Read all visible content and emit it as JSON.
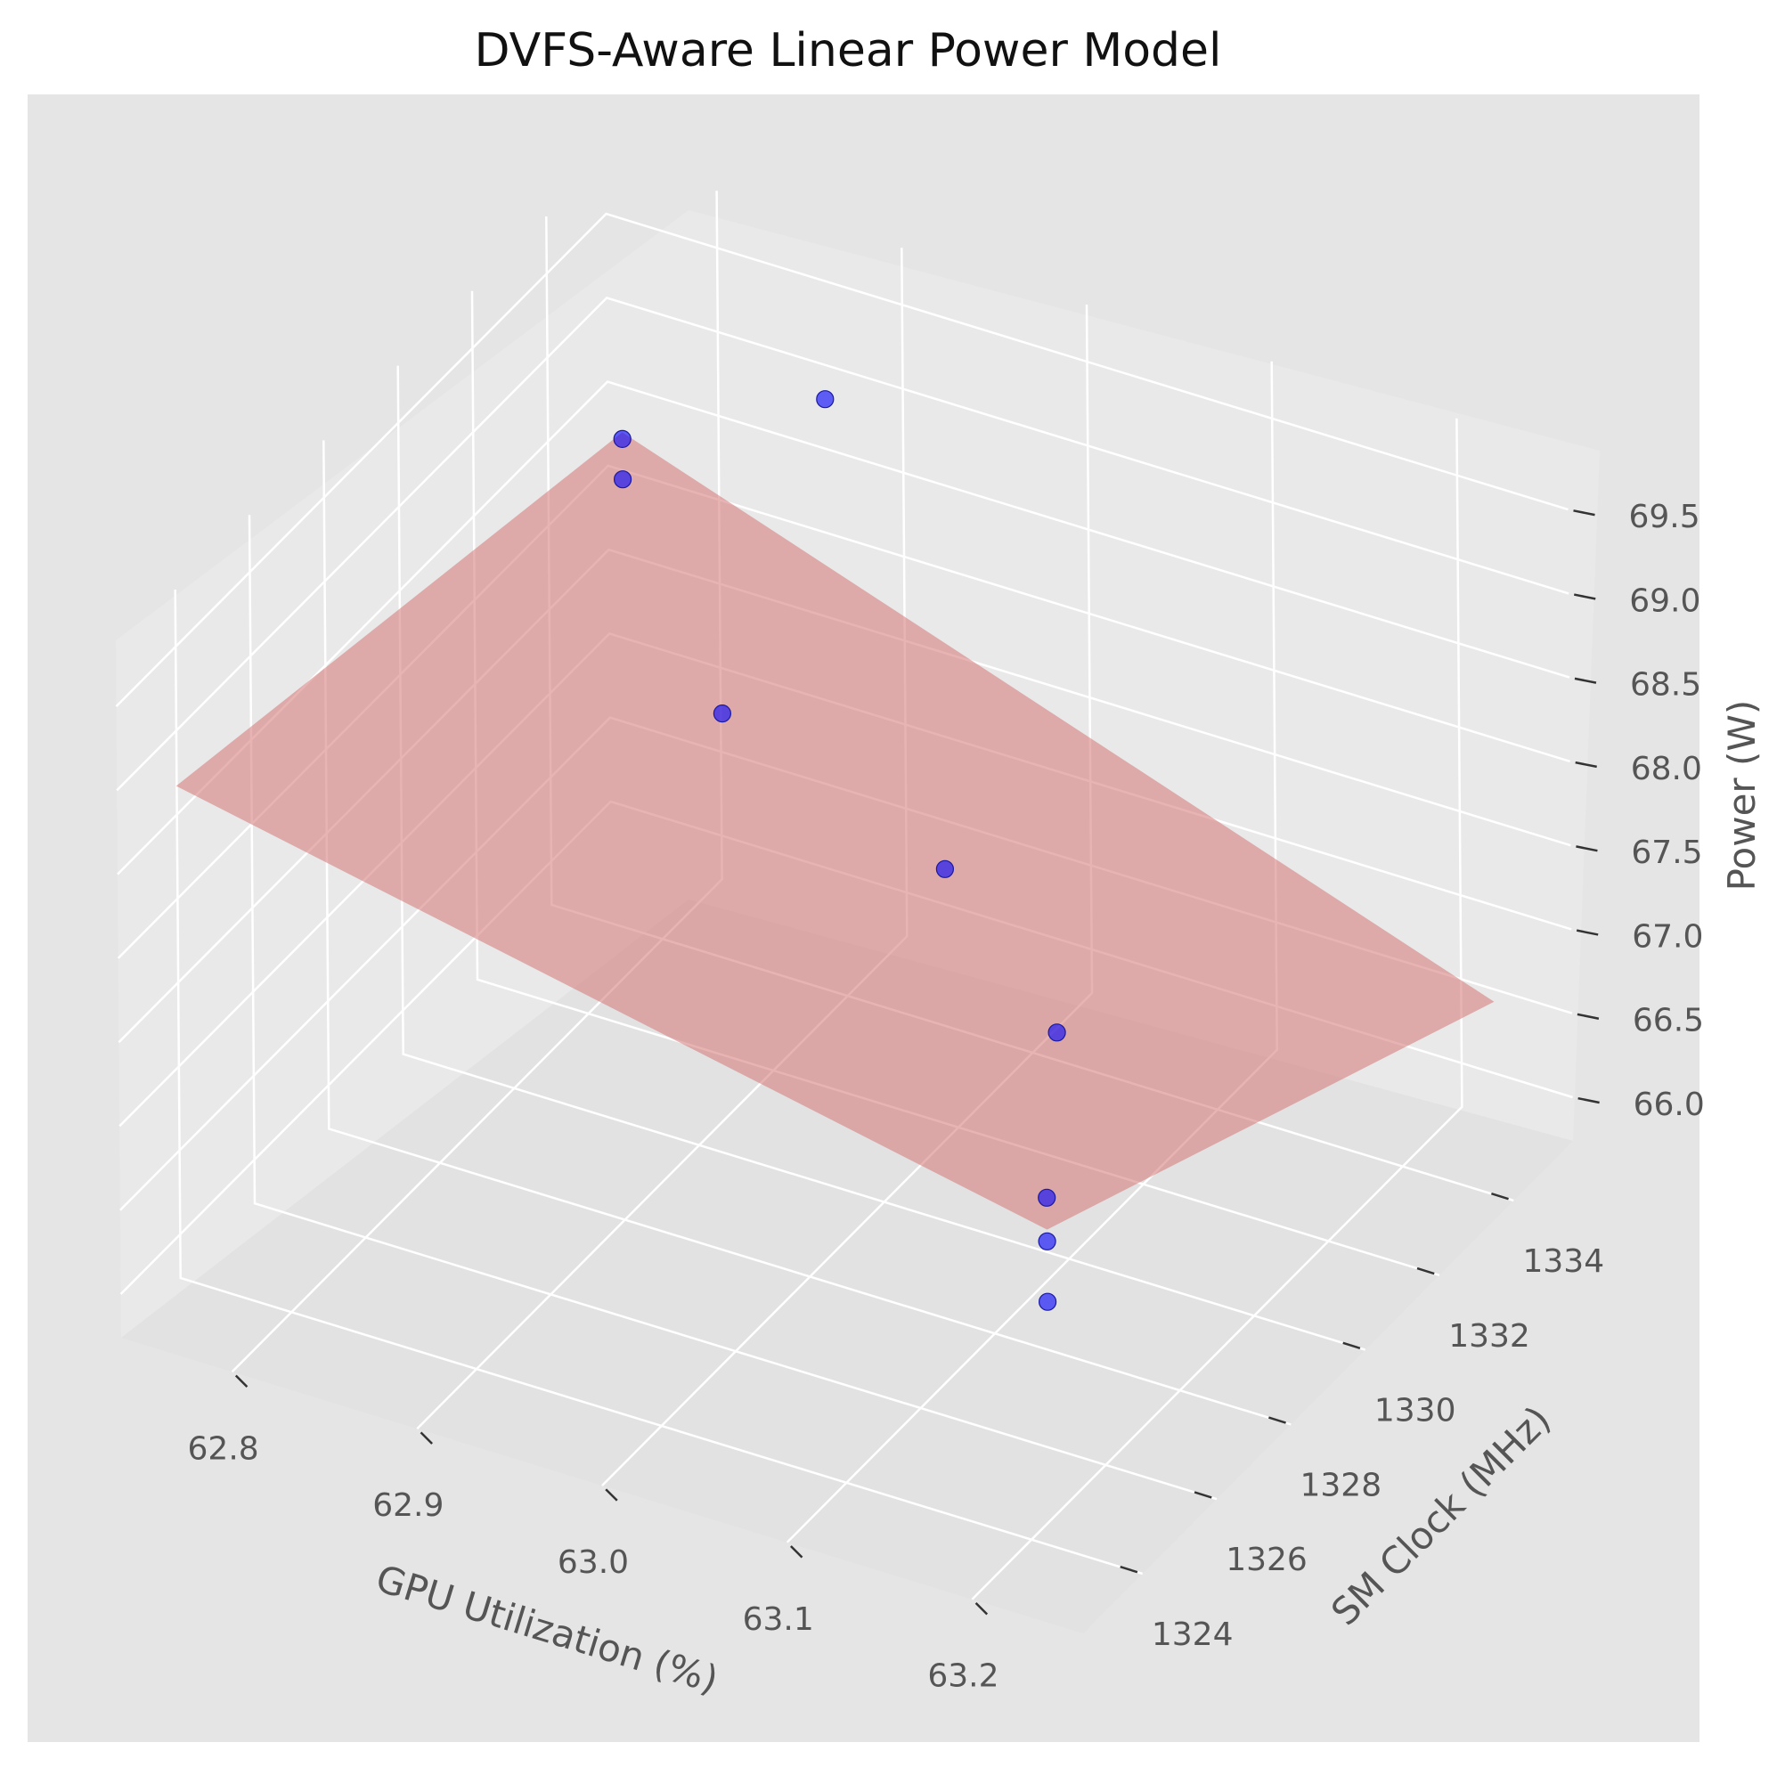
{
  "chart_data": {
    "type": "scatter",
    "title": "DVFS-Aware Linear Power Model",
    "xlabel": "GPU Utilization (%)",
    "ylabel": "SM Clock (MHz)",
    "zlabel": "Power (W)",
    "x_ticks": [
      "62.8",
      "62.9",
      "63.0",
      "63.1",
      "63.2"
    ],
    "y_ticks": [
      "1324",
      "1326",
      "1328",
      "1330",
      "1332",
      "1334"
    ],
    "z_ticks": [
      "66.0",
      "66.5",
      "67.0",
      "67.5",
      "68.0",
      "68.5",
      "69.0",
      "69.5"
    ],
    "xlim": [
      62.74,
      63.26
    ],
    "ylim": [
      1322.4,
      1335.6
    ],
    "zlim": [
      65.74,
      69.84
    ],
    "grid": true,
    "series": [
      {
        "kind": "scatter",
        "color": "#0000ff",
        "points": [
          {
            "x": 62.76,
            "y": 1335.0,
            "z": 68.36
          },
          {
            "x": 62.76,
            "y": 1335.0,
            "z": 68.12
          },
          {
            "x": 62.87,
            "y": 1335.0,
            "z": 68.97
          },
          {
            "x": 62.89,
            "y": 1331.2,
            "z": 68.01
          },
          {
            "x": 63.01,
            "y": 1331.2,
            "z": 67.49
          },
          {
            "x": 63.07,
            "y": 1331.2,
            "z": 66.72
          },
          {
            "x": 63.23,
            "y": 1323.0,
            "z": 68.1
          },
          {
            "x": 63.23,
            "y": 1323.0,
            "z": 67.84
          },
          {
            "x": 63.23,
            "y": 1323.0,
            "z": 67.48
          }
        ]
      },
      {
        "kind": "surface",
        "color": "#d47474",
        "corners": [
          {
            "x": 62.76,
            "y": 1335.0,
            "z": 68.4
          },
          {
            "x": 62.76,
            "y": 1323.0,
            "z": 68.96
          },
          {
            "x": 63.23,
            "y": 1323.0,
            "z": 67.91
          },
          {
            "x": 63.23,
            "y": 1335.0,
            "z": 66.6
          }
        ]
      }
    ]
  }
}
